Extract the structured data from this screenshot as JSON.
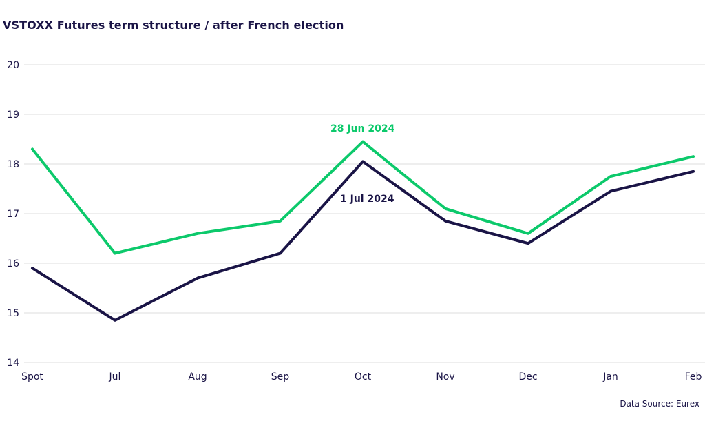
{
  "page": {
    "title": "VSTOXX Futures term structure / after French election",
    "source": "Data Source: Eurex"
  },
  "colors": {
    "title": "#1a1446",
    "axis_label": "#1a1446",
    "gridline": "#e3e3e3",
    "background": "#ffffff",
    "series_green": "#0cc96b",
    "series_navy": "#1a1446"
  },
  "chart_data": {
    "type": "line",
    "title": "VSTOXX Futures term structure / after French election",
    "categories": [
      "Spot",
      "Jul",
      "Aug",
      "Sep",
      "Oct",
      "Nov",
      "Dec",
      "Jan",
      "Feb"
    ],
    "series": [
      {
        "name": "28 Jun 2024",
        "color": "#0cc96b",
        "values": [
          18.3,
          16.2,
          16.6,
          16.85,
          18.45,
          17.1,
          16.6,
          17.75,
          18.15
        ]
      },
      {
        "name": "1 Jul 2024",
        "color": "#1a1446",
        "values": [
          15.9,
          14.85,
          15.7,
          16.2,
          18.05,
          16.85,
          16.4,
          17.45,
          17.85
        ]
      }
    ],
    "ylim": [
      14,
      20
    ],
    "yticks": [
      14,
      15,
      16,
      17,
      18,
      19,
      20
    ],
    "xlabel": "",
    "ylabel": "",
    "grid": "horizontal",
    "legend_position": "inline-annotations",
    "annotations": [
      {
        "text": "28 Jun 2024",
        "series": "28 Jun 2024",
        "color": "#0cc96b"
      },
      {
        "text": "1 Jul 2024",
        "series": "1 Jul 2024",
        "color": "#1a1446"
      }
    ],
    "source": "Data Source: Eurex"
  }
}
